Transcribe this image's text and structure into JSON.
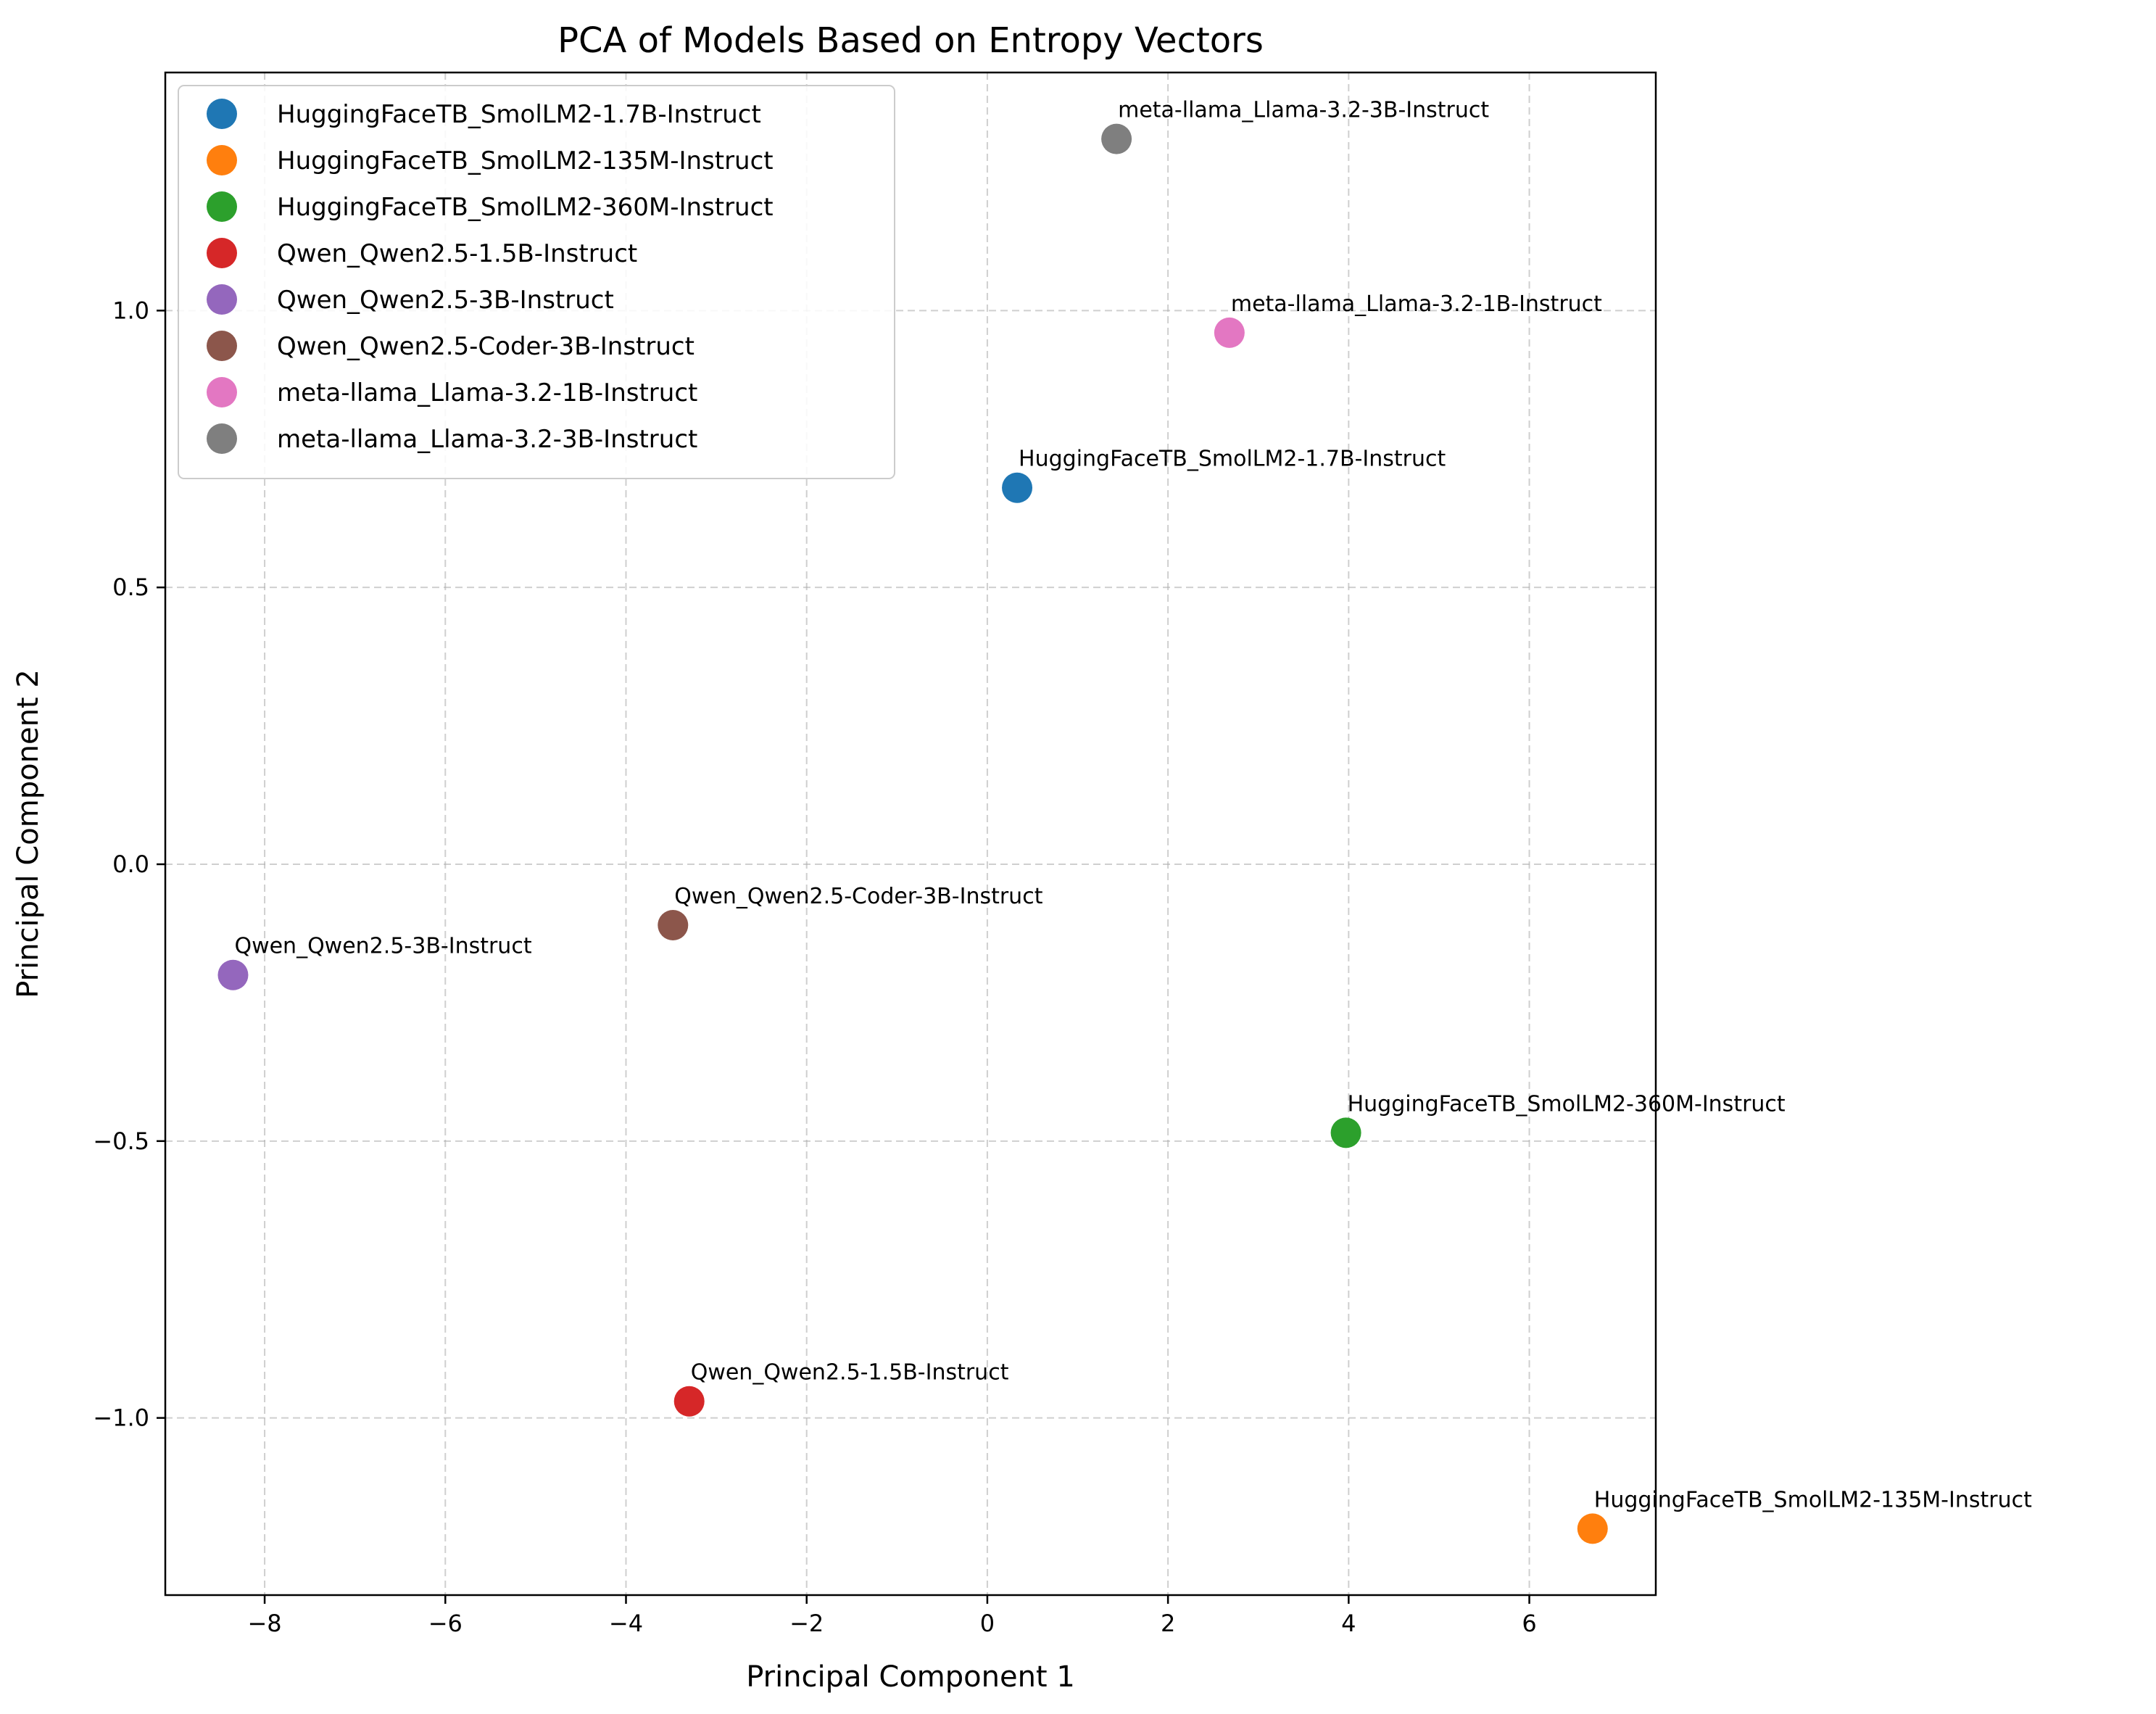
{
  "chart_data": {
    "type": "scatter",
    "title": "PCA of Models Based on Entropy Vectors",
    "xlabel": "Principal Component 1",
    "ylabel": "Principal Component 2",
    "xlim": [
      -9.1,
      7.4
    ],
    "ylim": [
      -1.32,
      1.43
    ],
    "xticks": [
      -8,
      -6,
      -4,
      -2,
      0,
      2,
      4,
      6
    ],
    "xtick_labels": [
      "−8",
      "−6",
      "−4",
      "−2",
      "0",
      "2",
      "4",
      "6"
    ],
    "yticks": [
      -1.0,
      -0.5,
      0.0,
      0.5,
      1.0
    ],
    "ytick_labels": [
      "−1.0",
      "−0.5",
      "0.0",
      "0.5",
      "1.0"
    ],
    "grid": true,
    "legend_position": "top-left",
    "series": [
      {
        "name": "HuggingFaceTB_SmolLM2-1.7B-Instruct",
        "color": "#1f77b4",
        "x": 0.33,
        "y": 0.68
      },
      {
        "name": "HuggingFaceTB_SmolLM2-135M-Instruct",
        "color": "#ff7f0e",
        "x": 6.7,
        "y": -1.2
      },
      {
        "name": "HuggingFaceTB_SmolLM2-360M-Instruct",
        "color": "#2ca02c",
        "x": 3.97,
        "y": -0.485
      },
      {
        "name": "Qwen_Qwen2.5-1.5B-Instruct",
        "color": "#d62728",
        "x": -3.3,
        "y": -0.97
      },
      {
        "name": "Qwen_Qwen2.5-3B-Instruct",
        "color": "#9467bd",
        "x": -8.35,
        "y": -0.2
      },
      {
        "name": "Qwen_Qwen2.5-Coder-3B-Instruct",
        "color": "#8c564b",
        "x": -3.48,
        "y": -0.11
      },
      {
        "name": "meta-llama_Llama-3.2-1B-Instruct",
        "color": "#e377c2",
        "x": 2.68,
        "y": 0.96
      },
      {
        "name": "meta-llama_Llama-3.2-3B-Instruct",
        "color": "#7f7f7f",
        "x": 1.43,
        "y": 1.31
      }
    ]
  }
}
